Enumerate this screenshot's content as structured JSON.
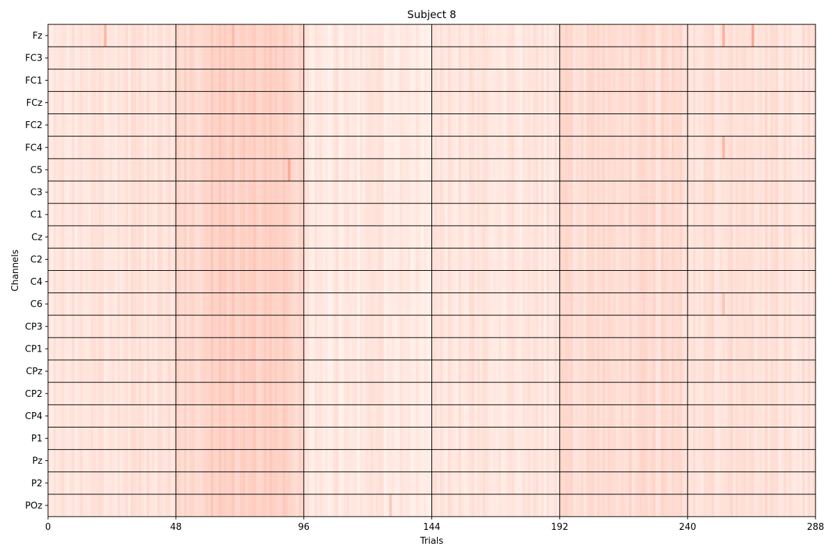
{
  "chart_data": {
    "type": "heatmap",
    "title": "Subject 8",
    "xlabel": "Trials",
    "ylabel": "Channels",
    "xlim": [
      0,
      288
    ],
    "x_ticks": [
      0,
      48,
      96,
      144,
      192,
      240,
      288
    ],
    "block_boundaries": [
      48,
      96,
      144,
      192,
      240
    ],
    "channels": [
      "Fz",
      "FC3",
      "FC1",
      "FCz",
      "FC2",
      "FC4",
      "C5",
      "C3",
      "C1",
      "Cz",
      "C2",
      "C4",
      "C6",
      "CP3",
      "CP1",
      "CPz",
      "CP2",
      "CP4",
      "P1",
      "Pz",
      "P2",
      "POz"
    ],
    "colormap": "Reds",
    "color_low": "#fff5f0",
    "color_high": "#fb6a4a",
    "block_mean_intensity": [
      0.12,
      0.22,
      0.09,
      0.11,
      0.17,
      0.14
    ],
    "highlighted_cells": [
      {
        "channel": "Fz",
        "trial": 21,
        "intensity": 0.45
      },
      {
        "channel": "Fz",
        "trial": 69,
        "intensity": 0.42
      },
      {
        "channel": "Fz",
        "trial": 253,
        "intensity": 0.5
      },
      {
        "channel": "Fz",
        "trial": 264,
        "intensity": 0.55
      },
      {
        "channel": "FC4",
        "trial": 253,
        "intensity": 0.45
      },
      {
        "channel": "C5",
        "trial": 90,
        "intensity": 0.55
      },
      {
        "channel": "C6",
        "trial": 253,
        "intensity": 0.35
      },
      {
        "channel": "POz",
        "trial": 128,
        "intensity": 0.32
      }
    ],
    "grid": true
  }
}
